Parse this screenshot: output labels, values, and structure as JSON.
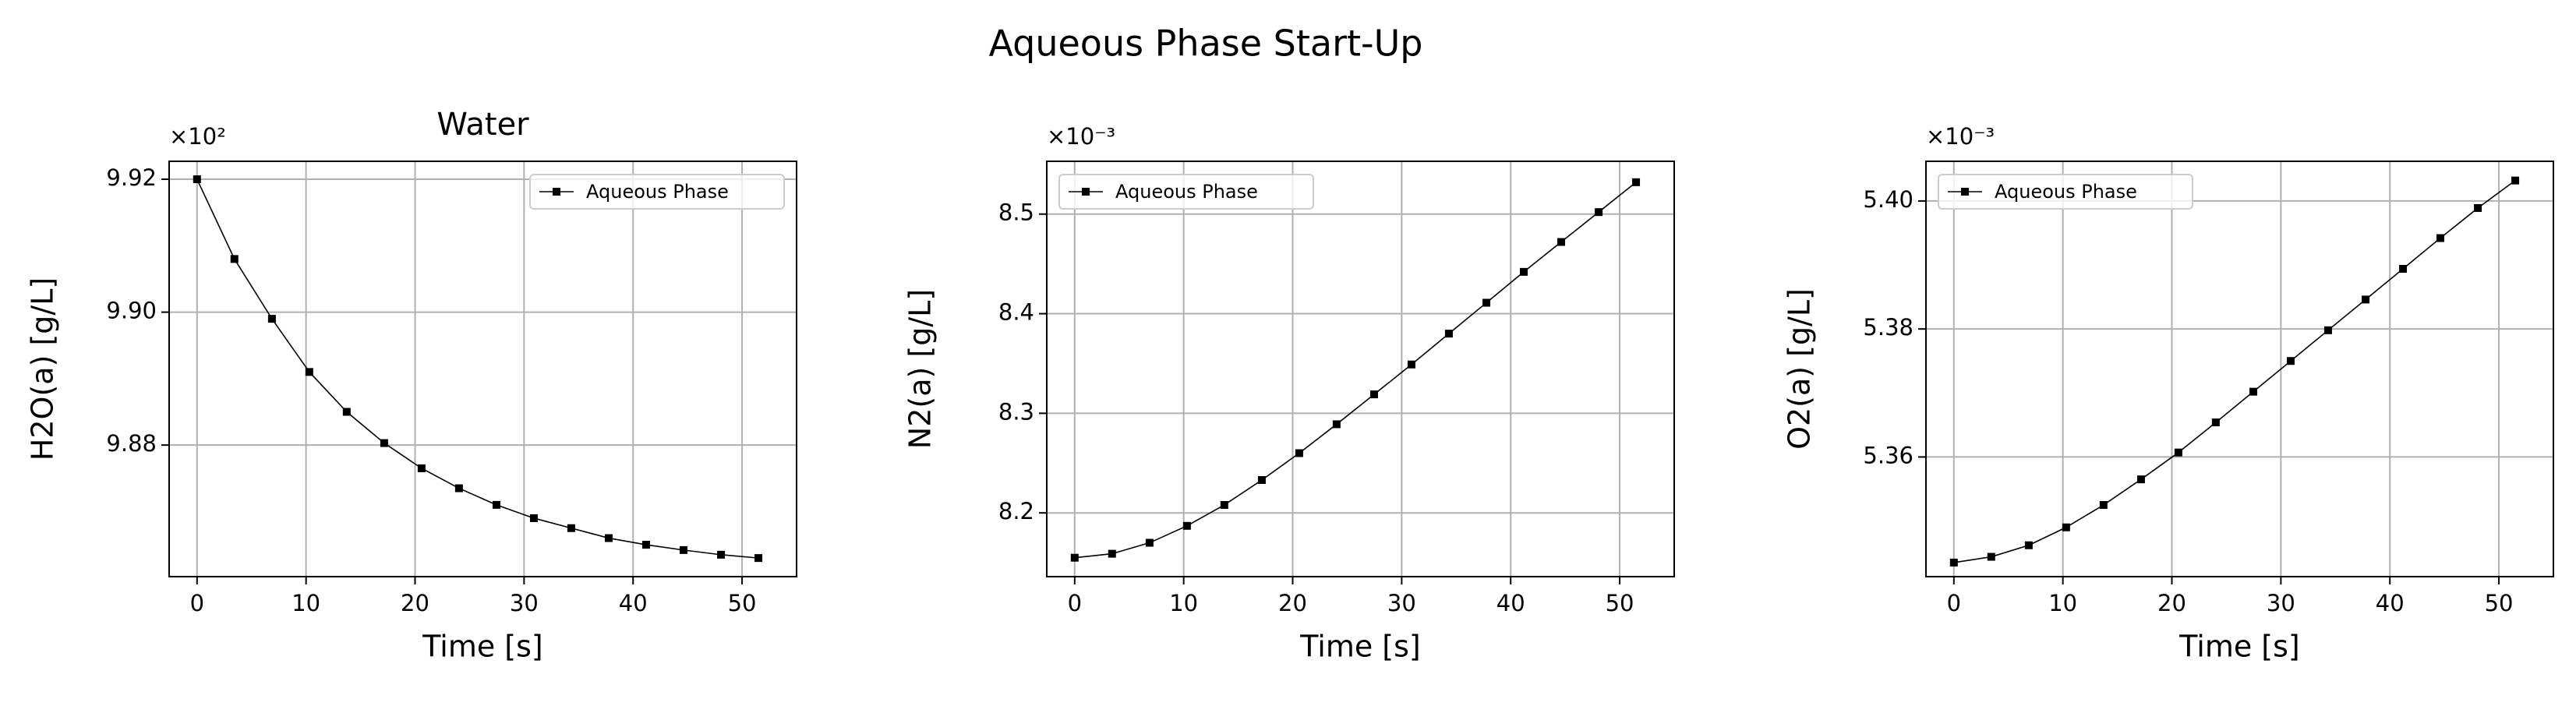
{
  "title": "Aqueous Phase Start-Up",
  "chart_data": [
    {
      "type": "line",
      "title": "Water",
      "offset_text": "×10²",
      "xlabel": "Time [s]",
      "ylabel": "H2O(a) [g/L]",
      "x": [
        0,
        3.43,
        6.87,
        10.3,
        13.73,
        17.17,
        20.6,
        24.03,
        27.47,
        30.9,
        34.33,
        37.77,
        41.2,
        44.63,
        48.07,
        51.5
      ],
      "series": [
        {
          "name": "Aqueous Phase",
          "color": "#000000",
          "values": [
            9.92,
            9.908,
            9.899,
            9.891,
            9.885,
            9.8803,
            9.8765,
            9.8735,
            9.871,
            9.869,
            9.8675,
            9.866,
            9.865,
            9.8642,
            9.8635,
            9.863
          ]
        }
      ],
      "xlim": [
        -2.56,
        55.0
      ],
      "xticks": [
        0,
        10,
        20,
        30,
        40,
        50
      ],
      "ylim": [
        9.8602,
        9.9227
      ],
      "yticks": [
        9.88,
        {
          "value": 9.9,
          "label": "9.90"
        },
        9.92
      ],
      "grid": true,
      "legend": "upper right"
    },
    {
      "type": "line",
      "offset_text": "×10⁻³",
      "xlabel": "Time [s]",
      "ylabel": "N2(a) [g/L]",
      "x": [
        0,
        3.43,
        6.87,
        10.3,
        13.73,
        17.17,
        20.6,
        24.03,
        27.47,
        30.9,
        34.33,
        37.77,
        41.2,
        44.63,
        48.07,
        51.5
      ],
      "series": [
        {
          "name": "Aqueous Phase",
          "color": "#000000",
          "values": [
            8.155,
            8.159,
            8.17,
            8.187,
            8.208,
            8.233,
            8.26,
            8.289,
            8.319,
            8.349,
            8.38,
            8.411,
            8.442,
            8.472,
            8.502,
            8.532
          ]
        }
      ],
      "xlim": [
        -2.56,
        55.0
      ],
      "xticks": [
        0,
        10,
        20,
        30,
        40,
        50
      ],
      "ylim": [
        8.136,
        8.553
      ],
      "yticks": [
        8.2,
        8.3,
        8.4,
        8.5
      ],
      "grid": true,
      "legend": "upper left"
    },
    {
      "type": "line",
      "offset_text": "×10⁻³",
      "xlabel": "Time [s]",
      "ylabel": "O2(a) [g/L]",
      "x": [
        0,
        3.43,
        6.87,
        10.3,
        13.73,
        17.17,
        20.6,
        24.03,
        27.47,
        30.9,
        34.33,
        37.77,
        41.2,
        44.63,
        48.07,
        51.5
      ],
      "series": [
        {
          "name": "Aqueous Phase",
          "color": "#000000",
          "values": [
            5.3435,
            5.3444,
            5.3462,
            5.349,
            5.3525,
            5.3565,
            5.3607,
            5.3654,
            5.3702,
            5.375,
            5.3798,
            5.3846,
            5.3894,
            5.3942,
            5.3989,
            5.4032
          ]
        }
      ],
      "xlim": [
        -2.56,
        55.0
      ],
      "xticks": [
        0,
        10,
        20,
        30,
        40,
        50
      ],
      "ylim": [
        5.3413,
        5.4062
      ],
      "yticks": [
        5.36,
        5.38,
        {
          "value": 5.4,
          "label": "5.40"
        }
      ],
      "grid": true,
      "legend": "upper left"
    }
  ]
}
